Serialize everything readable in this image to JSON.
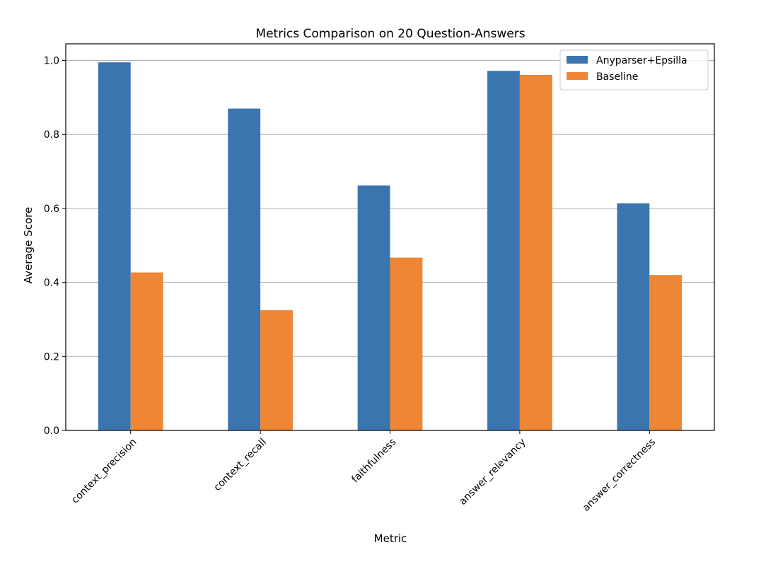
{
  "chart_data": {
    "type": "bar",
    "title": "Metrics Comparison on 20 Question-Answers",
    "xlabel": "Metric",
    "ylabel": "Average Score",
    "categories": [
      "context_precision",
      "context_recall",
      "faithfulness",
      "answer_relevancy",
      "answer_correctness"
    ],
    "series": [
      {
        "name": "Anyparser+Epsilla",
        "color": "#3a75b0",
        "values": [
          0.995,
          0.87,
          0.662,
          0.972,
          0.614
        ]
      },
      {
        "name": "Baseline",
        "color": "#ee8636",
        "values": [
          0.427,
          0.325,
          0.467,
          0.961,
          0.42
        ]
      }
    ],
    "ylim": [
      0,
      1.045
    ],
    "yticks": [
      "0.0",
      "0.2",
      "0.4",
      "0.6",
      "0.8",
      "1.0"
    ],
    "grid": "y",
    "legend_position": "top-right",
    "xtick_rotation": 45
  }
}
